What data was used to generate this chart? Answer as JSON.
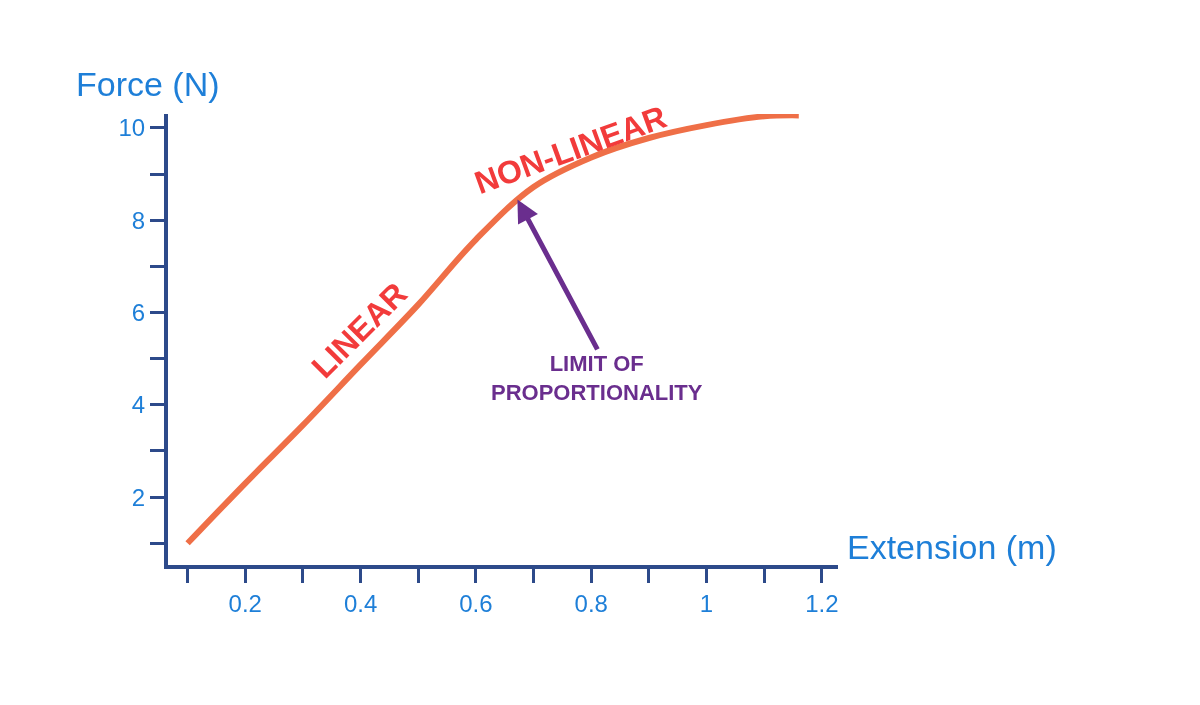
{
  "chart_data": {
    "type": "line",
    "xlabel": "Extension (m)",
    "ylabel": "Force (N)",
    "x": [
      0.1,
      0.2,
      0.3,
      0.4,
      0.5,
      0.6,
      0.7,
      0.8,
      0.9,
      1.0,
      1.1,
      1.16
    ],
    "series": [
      {
        "color": "#ef6f47",
        "values": [
          1,
          2.3,
          3.56,
          4.87,
          6.17,
          7.58,
          8.72,
          9.36,
          9.78,
          10.06,
          10.25,
          10.27
        ]
      }
    ],
    "xlim": [
      0.066,
      1.228
    ],
    "ylim": [
      0.53,
      10.3
    ],
    "xticks": [
      {
        "value": 0.1,
        "label": null
      },
      0.2,
      {
        "value": 0.3,
        "label": null
      },
      0.4,
      {
        "value": 0.5,
        "label": null
      },
      0.6,
      {
        "value": 0.7,
        "label": null
      },
      0.8,
      {
        "value": 0.9,
        "label": null
      },
      1,
      {
        "value": 1.1,
        "label": null
      },
      1.2
    ],
    "yticks": [
      {
        "value": 1,
        "label": null
      },
      2,
      {
        "value": 3,
        "label": null
      },
      4,
      {
        "value": 5,
        "label": null
      },
      6,
      {
        "value": 7,
        "label": null
      },
      8,
      {
        "value": 9,
        "label": null
      },
      10
    ],
    "marker": "none",
    "line_style": "solid",
    "annotations": [
      "LINEAR",
      "NON-LINEAR",
      {
        "text": "LIMIT OF\nPROPORTIONALITY",
        "x": 0.672,
        "y": 8.45
      }
    ]
  }
}
